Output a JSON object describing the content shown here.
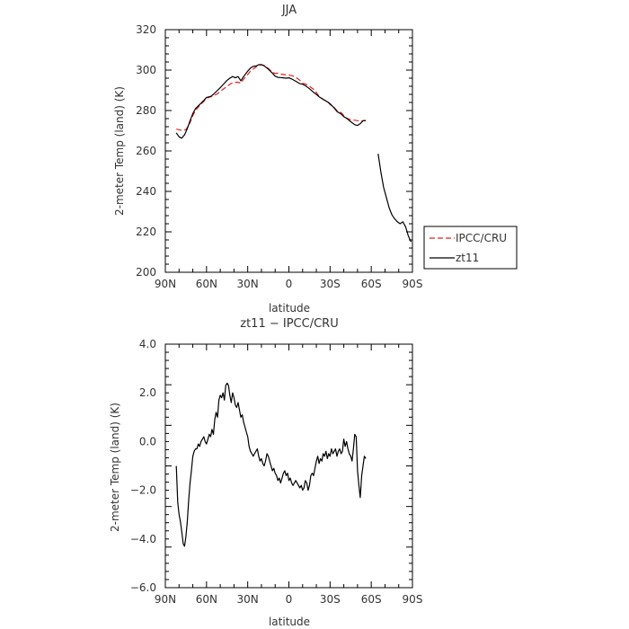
{
  "chart_data": [
    {
      "type": "line",
      "title": "JJA",
      "xlabel": "latitude",
      "ylabel": "2-meter Temp (land) (K)",
      "xlim": [
        90,
        -90
      ],
      "ylim": [
        200,
        320
      ],
      "x_ticks": [
        90,
        60,
        30,
        0,
        -30,
        -60,
        -90
      ],
      "x_tick_labels": [
        "90N",
        "60N",
        "30N",
        "0",
        "30S",
        "60S",
        "90S"
      ],
      "y_ticks": [
        200,
        220,
        240,
        260,
        280,
        300,
        320
      ],
      "y_tick_labels": [
        "200",
        "220",
        "240",
        "260",
        "280",
        "300",
        "320"
      ],
      "legend": "outside-right",
      "series": [
        {
          "name": "IPCC/CRU",
          "color": "#e8201f",
          "dash": "dashed",
          "x": [
            82,
            78,
            75,
            72,
            70,
            68,
            65,
            62,
            60,
            57,
            55,
            52,
            50,
            47,
            44,
            42,
            40,
            37,
            35,
            33,
            30,
            28,
            26,
            24,
            22,
            20,
            18,
            15,
            12,
            10,
            8,
            6,
            4,
            2,
            0,
            -2,
            -5,
            -8,
            -10,
            -12,
            -15,
            -18,
            -20,
            -22,
            -25,
            -28,
            -30,
            -33,
            -35,
            -38,
            -40,
            -42,
            -45,
            -48,
            -50,
            -52,
            -54,
            -56
          ],
          "y": [
            270.8,
            270.2,
            270.5,
            274,
            277.5,
            280,
            282.5,
            284.5,
            286,
            286.8,
            287.3,
            288.3,
            289.5,
            291,
            292.5,
            293.4,
            293.9,
            294,
            293.5,
            295.5,
            297.8,
            299.5,
            300.5,
            301.5,
            302.3,
            302.6,
            302.3,
            300.8,
            299,
            298.3,
            298.5,
            298,
            297.8,
            297.6,
            297.6,
            297.3,
            296.5,
            295,
            293.5,
            293.2,
            292,
            290.5,
            289,
            287,
            285.5,
            284.5,
            283,
            281.5,
            280,
            279,
            277.5,
            276.2,
            275.5,
            275.2,
            275,
            274.8,
            275,
            275.2
          ]
        },
        {
          "name": "zt11",
          "color": "#000000",
          "dash": "solid",
          "x": [
            82,
            80,
            78,
            76,
            74,
            72,
            70,
            68,
            65,
            62,
            60,
            57,
            55,
            52,
            50,
            47,
            45,
            43,
            41,
            39,
            37,
            35,
            33,
            30,
            28,
            26,
            24,
            22,
            20,
            18,
            15,
            12,
            10,
            8,
            6,
            4,
            2,
            0,
            -2,
            -5,
            -8,
            -10,
            -12,
            -15,
            -18,
            -20,
            -22,
            -25,
            -28,
            -30,
            -33,
            -35,
            -38,
            -40,
            -42,
            -45,
            -48,
            -50,
            -52,
            -54,
            -56,
            null,
            -65,
            -67,
            -69,
            -71,
            -73,
            -75,
            -77,
            -79,
            -81,
            -83,
            -85,
            -87,
            -89
          ],
          "y": [
            269,
            267,
            266.3,
            268,
            271,
            275,
            278.5,
            281,
            283,
            285,
            286.5,
            287,
            288,
            290,
            291.3,
            293.5,
            295,
            296,
            296.8,
            296.2,
            296.8,
            294.7,
            296.8,
            299.5,
            301,
            301.8,
            302,
            302.6,
            302.7,
            302.1,
            300.5,
            298.5,
            297,
            296.4,
            296.3,
            296.2,
            296,
            296.2,
            295.6,
            294.5,
            293.3,
            293,
            292.3,
            290.8,
            289,
            288,
            286.8,
            285.5,
            284.3,
            283.4,
            281.3,
            279.5,
            278.3,
            277,
            276.2,
            274.5,
            273,
            272.6,
            273.5,
            275,
            275,
            null,
            258.6,
            249.5,
            242,
            237,
            232,
            228.5,
            226.5,
            225,
            224,
            225,
            222.5,
            218,
            215
          ]
        }
      ]
    },
    {
      "type": "line",
      "title": "zt11 − IPCC/CRU",
      "xlabel": "latitude",
      "ylabel": "2-meter Temp (land) (K)",
      "xlim": [
        90,
        -90
      ],
      "ylim": [
        -6,
        4
      ],
      "x_ticks": [
        90,
        60,
        30,
        0,
        -30,
        -60,
        -90
      ],
      "x_tick_labels": [
        "90N",
        "60N",
        "30N",
        "0",
        "30S",
        "60S",
        "90S"
      ],
      "y_ticks": [
        -6,
        -4,
        -2,
        0,
        2,
        4
      ],
      "y_tick_labels": [
        "−6.0",
        "−4.0",
        "−2.0",
        "0.0",
        "2.0",
        "4.0"
      ],
      "series": [
        {
          "color": "#000000",
          "dash": "solid",
          "x": [
            82,
            81,
            80,
            79,
            78,
            77,
            76,
            75,
            74,
            73,
            72,
            71,
            70,
            69,
            68,
            67,
            66,
            65,
            64,
            63,
            62,
            61,
            60,
            59,
            58,
            57,
            56,
            55,
            54,
            53,
            52,
            51,
            50,
            49,
            48,
            47,
            46,
            45,
            44,
            43,
            42,
            41,
            40,
            39,
            38,
            37,
            36,
            35,
            34,
            33,
            32,
            31,
            30,
            29,
            28,
            27,
            26,
            25,
            24,
            23,
            22,
            21,
            20,
            19,
            18,
            17,
            16,
            15,
            14,
            13,
            12,
            11,
            10,
            9,
            8,
            7,
            6,
            5,
            4,
            3,
            2,
            1,
            0,
            -1,
            -2,
            -3,
            -4,
            -5,
            -6,
            -7,
            -8,
            -9,
            -10,
            -11,
            -12,
            -13,
            -14,
            -15,
            -16,
            -17,
            -18,
            -19,
            -20,
            -21,
            -22,
            -23,
            -24,
            -25,
            -26,
            -27,
            -28,
            -29,
            -30,
            -31,
            -32,
            -33,
            -34,
            -35,
            -36,
            -37,
            -38,
            -39,
            -40,
            -41,
            -42,
            -43,
            -44,
            -45,
            -46,
            -47,
            -48,
            -49,
            -50,
            -51,
            -52,
            -53,
            -54,
            -55,
            -56
          ],
          "y": [
            -1,
            -2.5,
            -3,
            -3.3,
            -3.7,
            -4.2,
            -4.3,
            -3.9,
            -3.3,
            -2.4,
            -1.7,
            -1.2,
            -0.6,
            -0.4,
            -0.3,
            -0.3,
            -0.1,
            -0.2,
            0,
            0.1,
            0.2,
            0,
            -0.1,
            0.1,
            0.3,
            0.2,
            0.5,
            0.3,
            0.9,
            1.2,
            1,
            1.7,
            1.9,
            1.8,
            2,
            1.7,
            2.3,
            2.4,
            2.3,
            1.9,
            1.6,
            2,
            1.8,
            1.5,
            1.4,
            1.6,
            1.3,
            1,
            1.1,
            0.8,
            0.6,
            0.4,
            0.2,
            -0.2,
            -0.4,
            -0.5,
            -0.6,
            -0.5,
            -0.4,
            -0.3,
            -0.6,
            -0.8,
            -0.7,
            -0.9,
            -1,
            -0.8,
            -0.5,
            -0.6,
            -0.8,
            -1,
            -1.2,
            -1.1,
            -1.3,
            -1.4,
            -1.6,
            -1.5,
            -1.7,
            -1.5,
            -1.3,
            -1.2,
            -1.4,
            -1.3,
            -1.6,
            -1.5,
            -1.7,
            -1.8,
            -1.7,
            -1.6,
            -1.7,
            -1.8,
            -1.9,
            -1.8,
            -2,
            -1.9,
            -1.6,
            -1.7,
            -2,
            -1.8,
            -1.4,
            -1.3,
            -1.4,
            -1.1,
            -0.8,
            -0.6,
            -0.9,
            -0.7,
            -0.8,
            -0.5,
            -0.6,
            -0.4,
            -0.7,
            -0.5,
            -0.6,
            -0.3,
            -0.5,
            -0.4,
            -0.3,
            -0.6,
            -0.4,
            -0.3,
            -0.5,
            -0.4,
            0.1,
            -0.2,
            0,
            -0.3,
            -0.5,
            -0.6,
            -0.8,
            -0.3,
            0.3,
            0.2,
            -1.2,
            -1.8,
            -2.3,
            -1.4,
            -1,
            -0.6,
            -0.7
          ]
        }
      ]
    }
  ]
}
